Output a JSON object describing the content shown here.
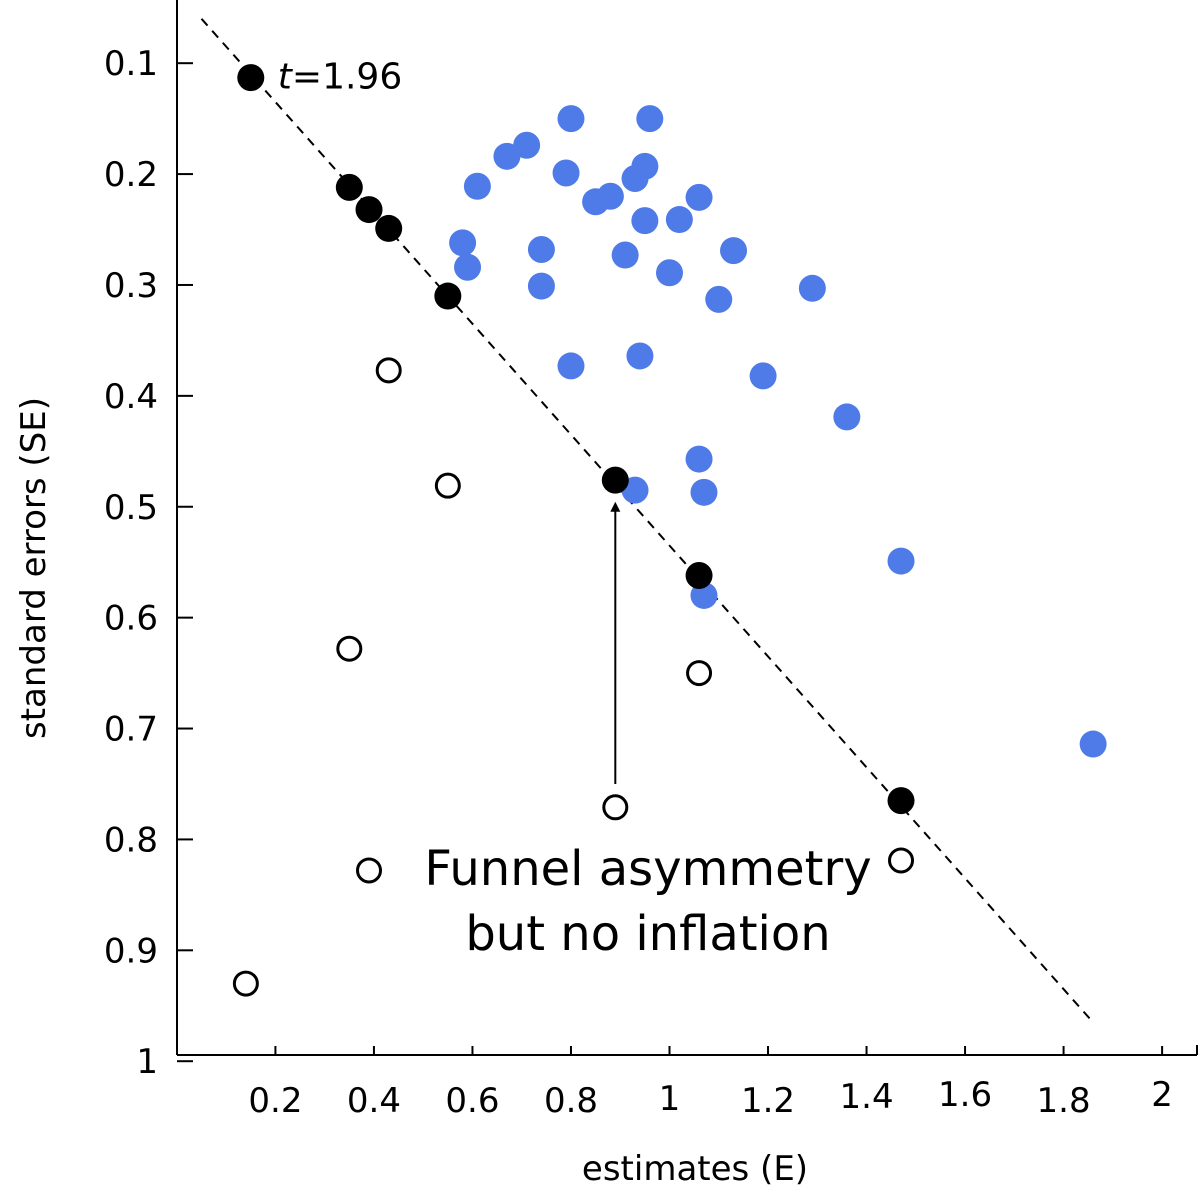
{
  "chart_data": {
    "type": "scatter",
    "xlabel": "estimates (E)",
    "ylabel": "standard errors (SE)",
    "xlim": [
      0.0,
      2.05
    ],
    "ylim": [
      0.05,
      1.0
    ],
    "y_inverted": true,
    "xticks": [
      0.2,
      0.4,
      0.6,
      0.8,
      1,
      1.2,
      1.4,
      1.6,
      1.8,
      2
    ],
    "xtick_labels": [
      "0.2",
      "0.4",
      "0.6",
      "0.8",
      "1",
      "1.2",
      "1.4",
      "1.6",
      "1.8",
      "2"
    ],
    "yticks": [
      0.1,
      0.2,
      0.3,
      0.4,
      0.5,
      0.6,
      0.7,
      0.8,
      0.9,
      1
    ],
    "ytick_labels": [
      "0.1",
      "0.2",
      "0.3",
      "0.4",
      "0.5",
      "0.6",
      "0.7",
      "0.8",
      "0.9",
      "1"
    ],
    "grid": false,
    "colors": {
      "blue": "#4f7be8",
      "black": "#000000",
      "open": "#ffffff"
    },
    "series": [
      {
        "style": "filled-blue",
        "points": [
          {
            "x": 0.8,
            "y": 0.15
          },
          {
            "x": 0.96,
            "y": 0.15
          },
          {
            "x": 0.71,
            "y": 0.174
          },
          {
            "x": 0.67,
            "y": 0.184
          },
          {
            "x": 0.79,
            "y": 0.199
          },
          {
            "x": 0.95,
            "y": 0.193
          },
          {
            "x": 0.93,
            "y": 0.204
          },
          {
            "x": 0.61,
            "y": 0.211
          },
          {
            "x": 0.85,
            "y": 0.225
          },
          {
            "x": 0.88,
            "y": 0.22
          },
          {
            "x": 1.06,
            "y": 0.221
          },
          {
            "x": 0.95,
            "y": 0.242
          },
          {
            "x": 1.02,
            "y": 0.241
          },
          {
            "x": 0.58,
            "y": 0.262
          },
          {
            "x": 0.74,
            "y": 0.268
          },
          {
            "x": 0.91,
            "y": 0.273
          },
          {
            "x": 1.13,
            "y": 0.269
          },
          {
            "x": 0.59,
            "y": 0.284
          },
          {
            "x": 1.0,
            "y": 0.289
          },
          {
            "x": 0.74,
            "y": 0.301
          },
          {
            "x": 1.29,
            "y": 0.303
          },
          {
            "x": 1.1,
            "y": 0.313
          },
          {
            "x": 0.94,
            "y": 0.364
          },
          {
            "x": 0.8,
            "y": 0.373
          },
          {
            "x": 1.19,
            "y": 0.382
          },
          {
            "x": 1.36,
            "y": 0.419
          },
          {
            "x": 1.06,
            "y": 0.457
          },
          {
            "x": 0.93,
            "y": 0.485
          },
          {
            "x": 1.07,
            "y": 0.487
          },
          {
            "x": 1.47,
            "y": 0.549
          },
          {
            "x": 1.07,
            "y": 0.58
          },
          {
            "x": 1.86,
            "y": 0.714
          }
        ]
      },
      {
        "style": "filled-black",
        "points": [
          {
            "x": 0.15,
            "y": 0.113
          },
          {
            "x": 0.35,
            "y": 0.212
          },
          {
            "x": 0.39,
            "y": 0.232
          },
          {
            "x": 0.43,
            "y": 0.249
          },
          {
            "x": 0.55,
            "y": 0.31
          },
          {
            "x": 0.89,
            "y": 0.476
          },
          {
            "x": 1.06,
            "y": 0.562
          },
          {
            "x": 1.47,
            "y": 0.765
          }
        ]
      },
      {
        "style": "open-circle",
        "points": [
          {
            "x": 0.43,
            "y": 0.377
          },
          {
            "x": 0.55,
            "y": 0.481
          },
          {
            "x": 0.35,
            "y": 0.628
          },
          {
            "x": 1.06,
            "y": 0.65
          },
          {
            "x": 0.89,
            "y": 0.771
          },
          {
            "x": 1.47,
            "y": 0.819
          },
          {
            "x": 0.14,
            "y": 0.93
          }
        ]
      }
    ],
    "reference_line": {
      "style": "dashed",
      "label_t": "t",
      "label_value": "=1.96",
      "from": {
        "x": 0.05,
        "y": 0.06
      },
      "to": {
        "x": 1.86,
        "y": 0.965
      }
    },
    "arrow": {
      "from": {
        "x": 0.89,
        "y": 0.75
      },
      "to": {
        "x": 0.89,
        "y": 0.5
      }
    },
    "annotation": {
      "marker": "open-circle",
      "marker_at": {
        "x": 0.39,
        "y": 0.828
      },
      "line1": "Funnel asymmetry",
      "line2": "but no inflation"
    }
  }
}
